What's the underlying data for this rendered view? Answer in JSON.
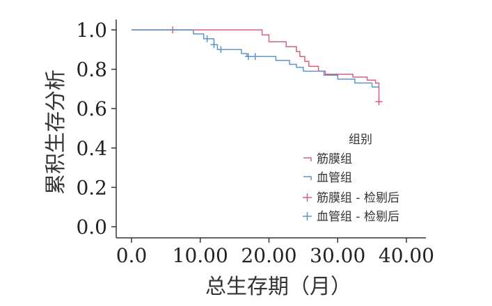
{
  "chart_data": {
    "type": "line",
    "title": "",
    "xlabel": "总生存期（月）",
    "ylabel": "累积生存分析",
    "xlim": [
      0,
      40
    ],
    "ylim": [
      0,
      1
    ],
    "x_ticks": [
      "0.0",
      "10.00",
      "20.00",
      "30.00",
      "40.00"
    ],
    "y_ticks": [
      "0.0",
      "0.2",
      "0.4",
      "0.6",
      "0.8",
      "1.0"
    ],
    "grid": false,
    "legend": {
      "title": "组别",
      "placement": "lower-right",
      "entries": [
        "筋膜组",
        "血管组",
        "筋膜组 - 检剔后",
        "血管组 - 检剔后"
      ]
    },
    "series": [
      {
        "name": "筋膜组",
        "color": "#d9607a",
        "style": "step",
        "points": [
          [
            0,
            1.0
          ],
          [
            19,
            1.0
          ],
          [
            19,
            0.975
          ],
          [
            20,
            0.975
          ],
          [
            20,
            0.94
          ],
          [
            22.5,
            0.94
          ],
          [
            22.5,
            0.915
          ],
          [
            24,
            0.915
          ],
          [
            24,
            0.89
          ],
          [
            24.5,
            0.89
          ],
          [
            24.5,
            0.865
          ],
          [
            25.2,
            0.865
          ],
          [
            25.2,
            0.84
          ],
          [
            25.8,
            0.84
          ],
          [
            25.8,
            0.815
          ],
          [
            27.2,
            0.815
          ],
          [
            27.2,
            0.79
          ],
          [
            28.2,
            0.79
          ],
          [
            28.2,
            0.775
          ],
          [
            32.2,
            0.775
          ],
          [
            32.2,
            0.76
          ],
          [
            34.3,
            0.76
          ],
          [
            34.3,
            0.745
          ],
          [
            35.5,
            0.745
          ],
          [
            35.5,
            0.73
          ],
          [
            36,
            0.73
          ],
          [
            36,
            0.635
          ]
        ],
        "censored": [
          [
            6,
            1.0
          ],
          [
            36,
            0.635
          ]
        ]
      },
      {
        "name": "血管组",
        "color": "#5b95c9",
        "style": "step",
        "points": [
          [
            0,
            1.0
          ],
          [
            9,
            1.0
          ],
          [
            9,
            0.98
          ],
          [
            10.5,
            0.98
          ],
          [
            10.5,
            0.955
          ],
          [
            12,
            0.955
          ],
          [
            12,
            0.925
          ],
          [
            12.5,
            0.925
          ],
          [
            12.5,
            0.9
          ],
          [
            16,
            0.9
          ],
          [
            16,
            0.88
          ],
          [
            16.8,
            0.88
          ],
          [
            16.8,
            0.865
          ],
          [
            21,
            0.865
          ],
          [
            21,
            0.845
          ],
          [
            23,
            0.845
          ],
          [
            23,
            0.825
          ],
          [
            24,
            0.825
          ],
          [
            24,
            0.81
          ],
          [
            25,
            0.81
          ],
          [
            25,
            0.79
          ],
          [
            28,
            0.79
          ],
          [
            28,
            0.77
          ],
          [
            30,
            0.77
          ],
          [
            30,
            0.75
          ],
          [
            32.5,
            0.75
          ],
          [
            32.5,
            0.73
          ],
          [
            35,
            0.73
          ],
          [
            35,
            0.71
          ],
          [
            36,
            0.71
          ]
        ],
        "censored": [
          [
            11,
            0.955
          ],
          [
            12,
            0.925
          ],
          [
            13,
            0.9
          ],
          [
            17,
            0.865
          ],
          [
            18,
            0.865
          ]
        ]
      }
    ]
  }
}
